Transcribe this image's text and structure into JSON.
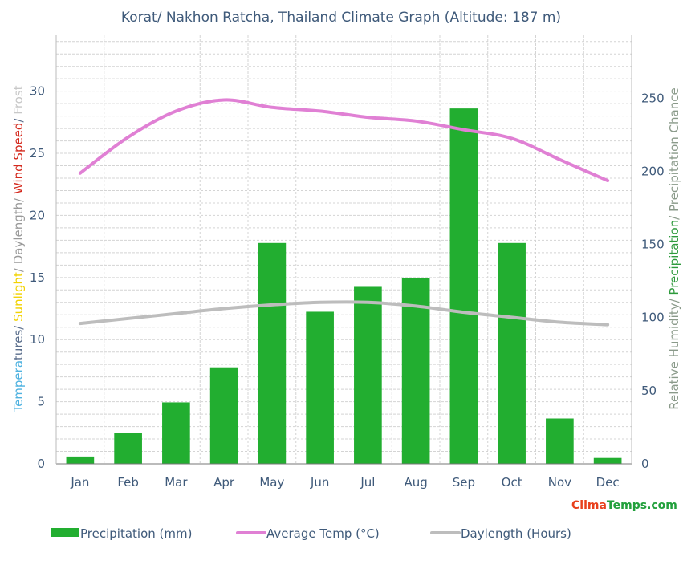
{
  "chart_data": {
    "type": "bar",
    "title": "Korat/ Nakhon Ratcha, Thailand Climate Graph (Altitude: 187 m)",
    "categories": [
      "Jan",
      "Feb",
      "Mar",
      "Apr",
      "May",
      "Jun",
      "Jul",
      "Aug",
      "Sep",
      "Oct",
      "Nov",
      "Dec"
    ],
    "left_axis": {
      "label_parts": [
        {
          "text": "Tempera",
          "color": "#4fb2e0"
        },
        {
          "text": "tures/ ",
          "color": "#5a6e8c"
        },
        {
          "text": "Sunlight",
          "color": "#f2d200"
        },
        {
          "text": "/ Daylength/ ",
          "color": "#9a9a9a"
        },
        {
          "text": "Wind Speed",
          "color": "#d42a1e"
        },
        {
          "text": "/ ",
          "color": "#5a6e8c"
        },
        {
          "text": "Frost",
          "color": "#c8c8c8"
        }
      ],
      "ylim": [
        0,
        34.5
      ],
      "ticks": [
        0,
        5,
        10,
        15,
        20,
        25,
        30
      ]
    },
    "right_axis": {
      "label_parts": [
        {
          "text": "Relative Humidity/ ",
          "color": "#8a9a8a"
        },
        {
          "text": "Precipitation",
          "color": "#2e9a3c"
        },
        {
          "text": "/ Precipitation Chance",
          "color": "#8a9a8a"
        }
      ],
      "ylim": [
        0,
        293
      ],
      "ticks": [
        0,
        50,
        100,
        150,
        200,
        250
      ]
    },
    "series": [
      {
        "name": "Precipitation (mm)",
        "kind": "bar",
        "axis": "right",
        "color": "#22ae30",
        "values": [
          5,
          21,
          42,
          66,
          151,
          104,
          121,
          127,
          243,
          151,
          31,
          4
        ]
      },
      {
        "name": "Average Temp (°C)",
        "kind": "line",
        "axis": "left",
        "color": "#e080d4",
        "values": [
          23.4,
          26.3,
          28.4,
          29.3,
          28.7,
          28.4,
          27.9,
          27.6,
          26.9,
          26.2,
          24.5,
          22.8
        ]
      },
      {
        "name": "Daylength (Hours)",
        "kind": "line",
        "axis": "left",
        "color": "#bdbdbd",
        "values": [
          11.3,
          11.7,
          12.1,
          12.5,
          12.8,
          13.0,
          13.0,
          12.7,
          12.2,
          11.8,
          11.4,
          11.2
        ]
      }
    ],
    "legend_position": "bottom",
    "grid": true,
    "brand": {
      "part1": "Clima",
      "part2": "Temps",
      "part3": ".com"
    }
  }
}
